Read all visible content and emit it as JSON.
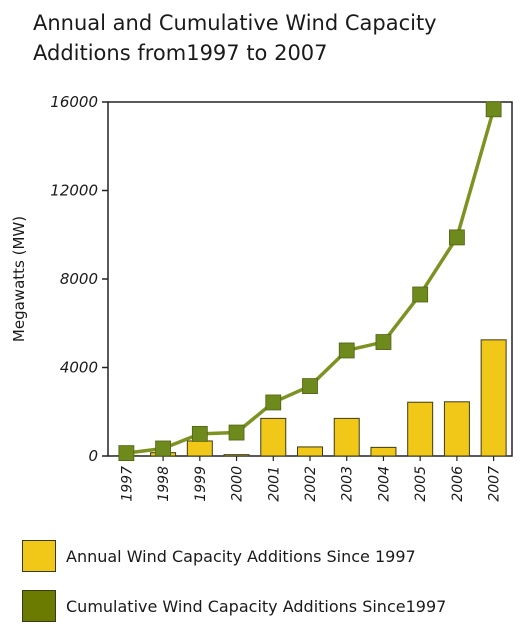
{
  "chart_data": {
    "type": "bar",
    "title_lines": [
      "Annual and Cumulative Wind Capacity",
      "Additions from1997 to 2007"
    ],
    "ylabel": "Megawatts (MW)",
    "xlabel": "",
    "ylim": [
      0,
      16000
    ],
    "yticks": [
      0,
      4000,
      8000,
      12000,
      16000
    ],
    "grid": false,
    "legend_position": "bottom",
    "categories": [
      "1997",
      "1998",
      "1999",
      "2000",
      "2001",
      "2002",
      "2003",
      "2004",
      "2005",
      "2006",
      "2007"
    ],
    "series": [
      {
        "name": "Annual Wind Capacity Additions Since 1997",
        "type": "bar",
        "color": "#f2c818",
        "values": [
          10,
          150,
          680,
          60,
          1700,
          410,
          1700,
          390,
          2430,
          2450,
          5250
        ]
      },
      {
        "name": "Cumulative Wind Capacity Additions Since1997",
        "type": "line",
        "color": "#7c9221",
        "marker_color": "#6f8a1c",
        "values": [
          130,
          340,
          1000,
          1060,
          2420,
          3160,
          4770,
          5150,
          7300,
          9880,
          15670
        ]
      }
    ]
  }
}
